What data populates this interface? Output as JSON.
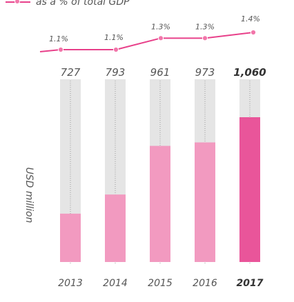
{
  "legend": {
    "label": "as a % of total GDP",
    "line_color": "#e8408a",
    "marker_color": "#f276aa"
  },
  "chart_data": {
    "type": "bar",
    "categories": [
      "2013",
      "2014",
      "2015",
      "2016",
      "2017"
    ],
    "ylabel": "USD million",
    "ylim": [
      0,
      1160
    ],
    "series": [
      {
        "name": "USD million",
        "type": "bar",
        "values": [
          727,
          793,
          961,
          973,
          1060
        ],
        "labels": [
          "727",
          "793",
          "961",
          "973",
          "1,060"
        ],
        "colors": [
          "#f29ac0",
          "#f29ac0",
          "#f29ac0",
          "#f29ac0",
          "#e9559a"
        ]
      },
      {
        "name": "as a % of total GDP",
        "type": "line",
        "values": [
          1.1,
          1.1,
          1.3,
          1.3,
          1.4
        ],
        "labels": [
          "1.1%",
          "1.1%",
          "1.3%",
          "1.3%",
          "1.4%"
        ],
        "color": "#e8408a"
      }
    ],
    "highlight_category": "2017",
    "background_bar_color": "#e5e5e5",
    "grid": false
  }
}
